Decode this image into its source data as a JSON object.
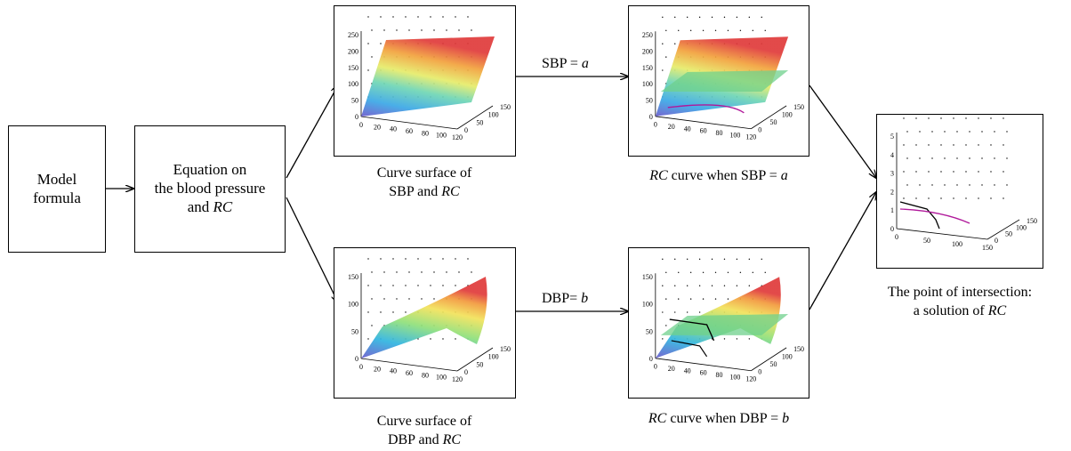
{
  "nodes": {
    "model": {
      "lines": [
        "Model",
        "formula"
      ]
    },
    "equation": {
      "line1": "Equation on",
      "line2": "the blood pressure",
      "line3_pre": "and ",
      "line3_ital": "RC"
    }
  },
  "edges": {
    "sbp_label": {
      "pre": "SBP = ",
      "var": "a"
    },
    "dbp_label": {
      "pre": "DBP= ",
      "var": "b"
    }
  },
  "captions": {
    "sbp_surface": {
      "line1": "Curve surface of",
      "line2_pre": "SBP and ",
      "line2_ital": "RC"
    },
    "dbp_surface": {
      "line1": "Curve surface of",
      "line2_pre": "DBP and ",
      "line2_ital": "RC"
    },
    "sbp_curve": {
      "ital": "RC",
      "rest": " curve when SBP = ",
      "var": "a"
    },
    "dbp_curve": {
      "ital": "RC",
      "rest": " curve when DBP = ",
      "var": "b"
    },
    "intersection": {
      "line1": "The point of intersection:",
      "line2_pre": "a solution of ",
      "line2_ital": "RC"
    }
  },
  "plots": {
    "sbp_surface": {
      "z_ticks": [
        "250",
        "200",
        "150",
        "100",
        "50",
        "0"
      ],
      "x_ticks": [
        "0",
        "20",
        "40",
        "60",
        "80",
        "100",
        "120"
      ],
      "y_ticks": [
        "150",
        "100",
        "50",
        "0"
      ]
    },
    "sbp_curve": {
      "z_ticks": [
        "250",
        "200",
        "150",
        "100",
        "50",
        "0"
      ],
      "x_ticks": [
        "0",
        "20",
        "40",
        "60",
        "80",
        "100",
        "120"
      ],
      "y_ticks": [
        "150",
        "100",
        "50",
        "0"
      ]
    },
    "dbp_surface": {
      "z_ticks": [
        "150",
        "100",
        "50",
        "0"
      ],
      "x_ticks": [
        "0",
        "20",
        "40",
        "60",
        "80",
        "100",
        "120"
      ],
      "y_ticks": [
        "150",
        "100",
        "50",
        "0"
      ]
    },
    "dbp_curve": {
      "z_ticks": [
        "150",
        "100",
        "50",
        "0"
      ],
      "x_ticks": [
        "0",
        "20",
        "40",
        "60",
        "80",
        "100",
        "120"
      ],
      "y_ticks": [
        "150",
        "100",
        "50",
        "0"
      ]
    },
    "intersection": {
      "z_ticks": [
        "5",
        "4",
        "3",
        "2",
        "1",
        "0"
      ],
      "x_ticks": [
        "0",
        "50",
        "100",
        "150"
      ],
      "y_ticks": [
        "150",
        "100",
        "50",
        "0"
      ]
    }
  },
  "colors": {
    "stroke": "#000000",
    "plane": "#6fd08c",
    "curve_sbp": "#b0189a",
    "curve_dbp": "#000000"
  }
}
